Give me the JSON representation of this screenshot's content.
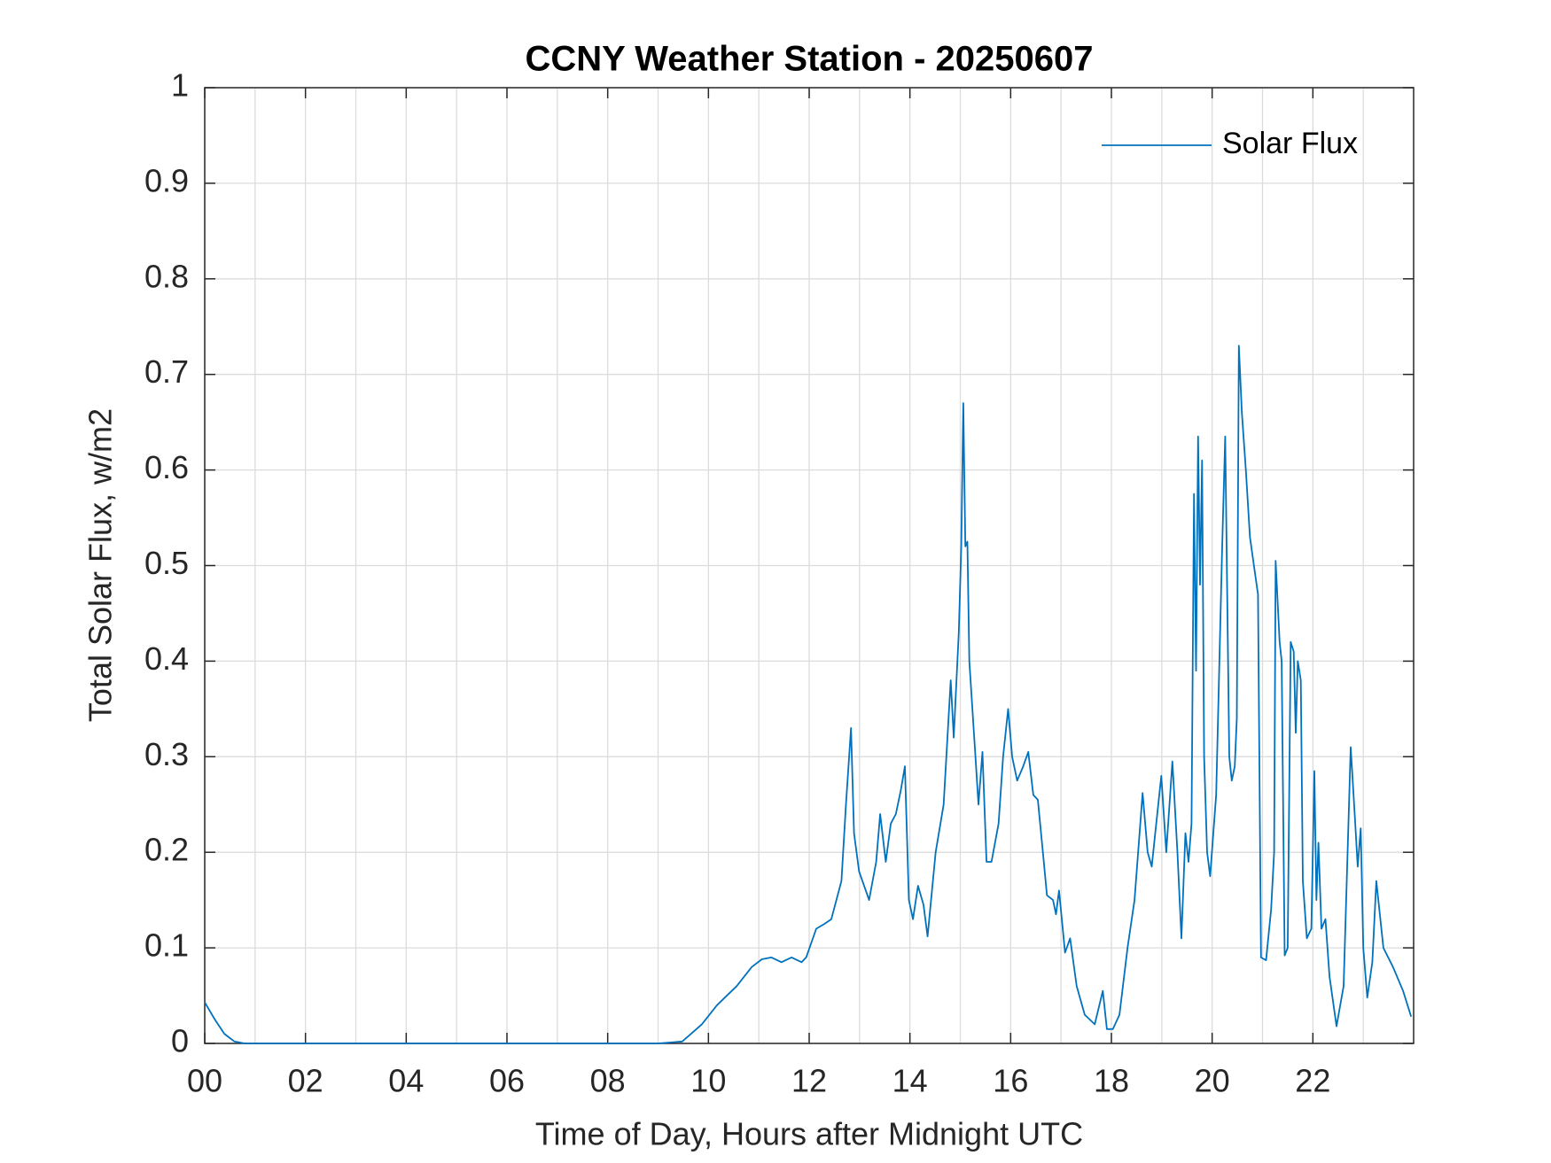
{
  "chart_data": {
    "type": "line",
    "title": "CCNY Weather Station - 20250607",
    "xlabel": "Time of Day, Hours after Midnight UTC",
    "ylabel": "Total Solar Flux, w/m2",
    "xlim": [
      0,
      24
    ],
    "ylim": [
      0,
      1
    ],
    "xticks": [
      {
        "value": 0,
        "label": "00"
      },
      {
        "value": 2,
        "label": "02"
      },
      {
        "value": 4,
        "label": "04"
      },
      {
        "value": 6,
        "label": "06"
      },
      {
        "value": 8,
        "label": "08"
      },
      {
        "value": 10,
        "label": "10"
      },
      {
        "value": 12,
        "label": "12"
      },
      {
        "value": 14,
        "label": "14"
      },
      {
        "value": 16,
        "label": "16"
      },
      {
        "value": 18,
        "label": "18"
      },
      {
        "value": 20,
        "label": "20"
      },
      {
        "value": 22,
        "label": "22"
      }
    ],
    "xminorticks": [
      1,
      3,
      5,
      7,
      9,
      11,
      13,
      15,
      17,
      19,
      21,
      23
    ],
    "yticks": [
      0,
      0.1,
      0.2,
      0.3,
      0.4,
      0.5,
      0.6,
      0.7,
      0.8,
      0.9,
      1
    ],
    "grid": true,
    "legend": "upper-right",
    "x": [
      0,
      0.2,
      0.39,
      0.59,
      0.79,
      9.0,
      9.48,
      9.87,
      10.17,
      10.56,
      10.86,
      11.06,
      11.25,
      11.45,
      11.65,
      11.85,
      11.94,
      12.14,
      12.3,
      12.44,
      12.64,
      12.73,
      12.83,
      12.89,
      12.99,
      13.19,
      13.33,
      13.41,
      13.52,
      13.62,
      13.72,
      13.82,
      13.9,
      13.98,
      14.06,
      14.16,
      14.27,
      14.35,
      14.51,
      14.67,
      14.81,
      14.87,
      14.97,
      15.02,
      15.06,
      15.1,
      15.14,
      15.18,
      15.3,
      15.36,
      15.44,
      15.52,
      15.62,
      15.76,
      15.85,
      15.95,
      16.03,
      16.13,
      16.25,
      16.35,
      16.45,
      16.54,
      16.64,
      16.72,
      16.84,
      16.9,
      16.96,
      17.08,
      17.18,
      17.31,
      17.47,
      17.67,
      17.83,
      17.91,
      18.03,
      18.16,
      18.32,
      18.46,
      18.62,
      18.72,
      18.8,
      18.89,
      18.99,
      19.09,
      19.21,
      19.31,
      19.39,
      19.47,
      19.53,
      19.59,
      19.64,
      19.68,
      19.72,
      19.76,
      19.8,
      19.84,
      19.9,
      19.96,
      20.08,
      20.2,
      20.26,
      20.34,
      20.39,
      20.45,
      20.49,
      20.53,
      20.59,
      20.67,
      20.75,
      20.83,
      20.91,
      20.97,
      21.07,
      21.17,
      21.23,
      21.26,
      21.34,
      21.38,
      21.44,
      21.5,
      21.56,
      21.62,
      21.66,
      21.7,
      21.76,
      21.8,
      21.88,
      21.97,
      22.03,
      22.07,
      22.11,
      22.17,
      22.25,
      22.33,
      22.47,
      22.61,
      22.69,
      22.75,
      22.83,
      22.89,
      22.95,
      23.0,
      23.08,
      23.18,
      23.26,
      23.4,
      23.59,
      23.79,
      23.95
    ],
    "series": [
      {
        "name": "Solar Flux",
        "color": "#0072bd",
        "values": [
          0.043,
          0.025,
          0.01,
          0.002,
          0,
          0,
          0.002,
          0.02,
          0.04,
          0.06,
          0.08,
          0.088,
          0.09,
          0.085,
          0.09,
          0.085,
          0.09,
          0.12,
          0.125,
          0.13,
          0.17,
          0.25,
          0.33,
          0.22,
          0.18,
          0.15,
          0.19,
          0.24,
          0.19,
          0.23,
          0.24,
          0.265,
          0.29,
          0.15,
          0.13,
          0.165,
          0.145,
          0.112,
          0.2,
          0.25,
          0.38,
          0.32,
          0.43,
          0.52,
          0.67,
          0.52,
          0.525,
          0.4,
          0.3,
          0.25,
          0.305,
          0.19,
          0.19,
          0.23,
          0.3,
          0.35,
          0.3,
          0.275,
          0.29,
          0.305,
          0.26,
          0.255,
          0.2,
          0.155,
          0.15,
          0.135,
          0.16,
          0.095,
          0.11,
          0.06,
          0.03,
          0.02,
          0.055,
          0.015,
          0.015,
          0.03,
          0.1,
          0.15,
          0.262,
          0.2,
          0.185,
          0.23,
          0.28,
          0.2,
          0.295,
          0.2,
          0.11,
          0.22,
          0.19,
          0.23,
          0.575,
          0.39,
          0.635,
          0.48,
          0.61,
          0.3,
          0.2,
          0.175,
          0.26,
          0.52,
          0.635,
          0.3,
          0.275,
          0.29,
          0.34,
          0.73,
          0.66,
          0.6,
          0.53,
          0.5,
          0.47,
          0.09,
          0.087,
          0.14,
          0.2,
          0.505,
          0.42,
          0.4,
          0.092,
          0.1,
          0.42,
          0.41,
          0.325,
          0.4,
          0.38,
          0.17,
          0.11,
          0.12,
          0.285,
          0.15,
          0.21,
          0.12,
          0.13,
          0.07,
          0.018,
          0.06,
          0.2,
          0.31,
          0.24,
          0.185,
          0.225,
          0.1,
          0.048,
          0.085,
          0.17,
          0.1,
          0.08,
          0.055,
          0.028
        ]
      }
    ]
  }
}
